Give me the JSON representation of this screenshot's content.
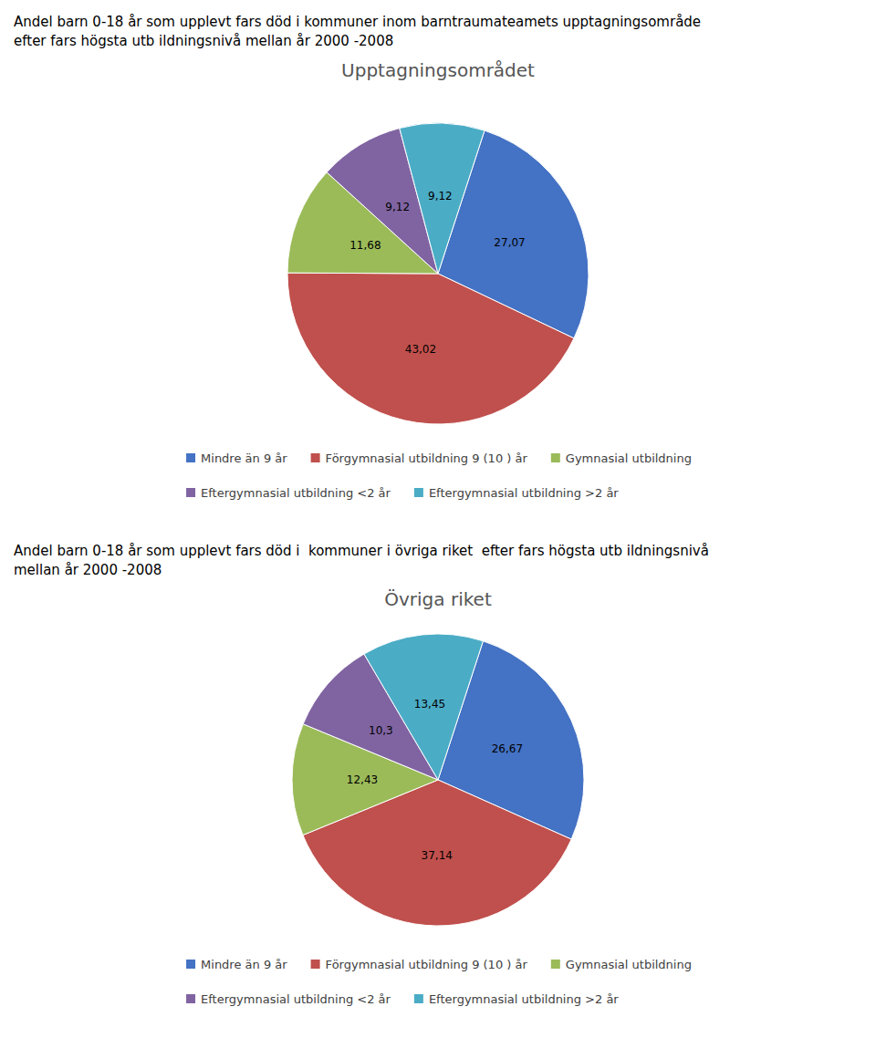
{
  "chart_data": [
    {
      "type": "pie",
      "title": "Andel barn 0-18 år som upplevt fars död i kommuner inom barntraumateamets upptagningsområde\nefter fars högsta utb ildningsnivå mellan år 2000 -2008",
      "subtitle": "Upptagningsområdet",
      "categories": [
        "Mindre än 9 år",
        "Förgymnasial utbildning 9 (10 ) år",
        "Gymnasial utbildning",
        "Eftergymnasial utbildning <2 år",
        "Eftergymnasial utbildning >2 år"
      ],
      "values": [
        27.07,
        43.02,
        11.68,
        9.12,
        9.12
      ],
      "value_labels": [
        "27,07",
        "43,02",
        "11,68",
        "9,12",
        "9,12"
      ],
      "colors": [
        "#4472C4",
        "#C0504D",
        "#9BBB59",
        "#8064A2",
        "#4BACC6"
      ],
      "data_labels": true,
      "legend": "bottom"
    },
    {
      "type": "pie",
      "title": "Andel barn 0-18 år som upplevt fars död i  kommuner i övriga riket  efter fars högsta utb ildningsnivå\nmellan år 2000 -2008",
      "subtitle": "Övriga riket",
      "categories": [
        "Mindre än 9 år",
        "Förgymnasial utbildning 9 (10 ) år",
        "Gymnasial utbildning",
        "Eftergymnasial utbildning <2 år",
        "Eftergymnasial utbildning >2 år"
      ],
      "values": [
        26.67,
        37.14,
        12.43,
        10.3,
        13.45
      ],
      "value_labels": [
        "26,67",
        "37,14",
        "12,43",
        "10,3",
        "13,45"
      ],
      "colors": [
        "#4472C4",
        "#C0504D",
        "#9BBB59",
        "#8064A2",
        "#4BACC6"
      ],
      "data_labels": true,
      "legend": "bottom"
    }
  ]
}
